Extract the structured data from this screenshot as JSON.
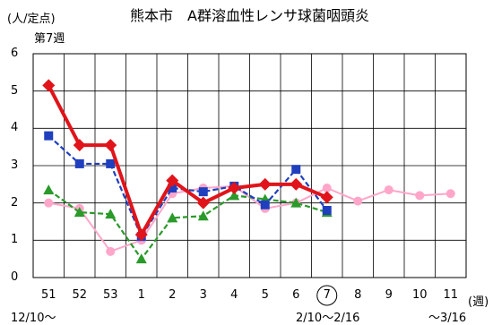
{
  "header": {
    "unit": "(人/定点)",
    "week": "第7週",
    "title": "熊本市　A群溶血性レンサ球菌咽頭炎"
  },
  "x_axis": {
    "unit": "(週)",
    "start_range": "12/10～",
    "current_range": "2/10～2/16",
    "end_range": "～3/16"
  },
  "chart_data": {
    "type": "line",
    "title": "熊本市　A群溶血性レンサ球菌咽頭炎",
    "ylabel": "(人/定点)",
    "xlabel": "(週)",
    "categories": [
      "51",
      "52",
      "53",
      "1",
      "2",
      "3",
      "4",
      "5",
      "6",
      "7",
      "8",
      "9",
      "10",
      "11"
    ],
    "highlighted_category": "7",
    "ylim": [
      0,
      6
    ],
    "yticks": [
      0,
      1,
      2,
      3,
      4,
      5,
      6
    ],
    "grid": true,
    "series": [
      {
        "color": "#ffa6c9",
        "marker": "circle",
        "style": "solid",
        "values": [
          2.0,
          1.85,
          0.7,
          1.0,
          2.25,
          2.4,
          2.45,
          1.85,
          2.0,
          2.4,
          2.05,
          2.35,
          2.2,
          2.25
        ]
      },
      {
        "color": "#2a9a2a",
        "marker": "triangle",
        "style": "dashed",
        "values": [
          2.35,
          1.75,
          1.7,
          0.5,
          1.6,
          1.65,
          2.2,
          2.1,
          2.0,
          1.75,
          null,
          null,
          null,
          null
        ]
      },
      {
        "color": "#1f3fbf",
        "marker": "square",
        "style": "dashed",
        "values": [
          3.8,
          3.05,
          3.05,
          1.1,
          2.4,
          2.3,
          2.45,
          1.95,
          2.9,
          1.8,
          null,
          null,
          null,
          null
        ]
      },
      {
        "color": "#e0141a",
        "marker": "diamond",
        "style": "solid",
        "values": [
          5.15,
          3.55,
          3.55,
          1.15,
          2.6,
          2.0,
          2.4,
          2.5,
          2.5,
          2.15,
          null,
          null,
          null,
          null
        ]
      }
    ]
  }
}
